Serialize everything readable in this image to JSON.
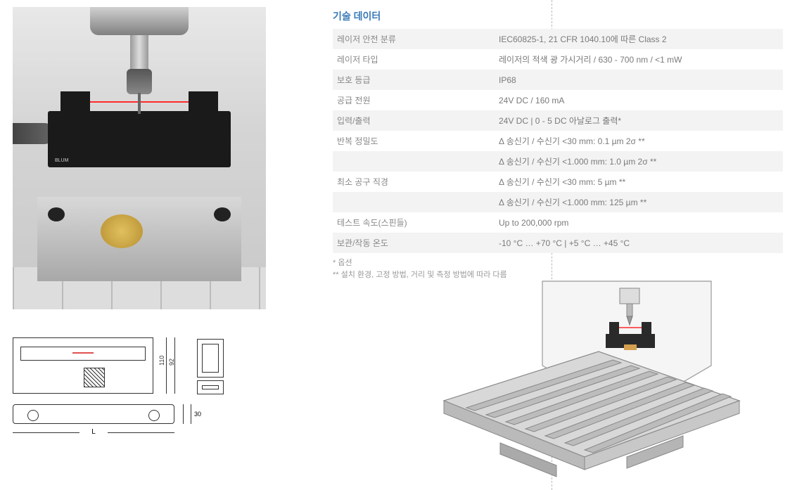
{
  "colors": {
    "accent": "#3a7ab8",
    "row_alt_bg": "#f3f3f3",
    "row_bg": "#ffffff",
    "text_muted": "#7a7a7a",
    "text_light": "#9a9a9a",
    "divider": "#bbbbbb",
    "laser": "#ff2a2a",
    "diagram_stroke": "#333333",
    "gold": "#e0c060"
  },
  "spec": {
    "title": "기술 데이터",
    "rows": [
      {
        "label": "레이저 안전 분류",
        "value": "IEC60825-1, 21 CFR 1040.10에 따른 Class 2"
      },
      {
        "label": "레이저 타입",
        "value": "레이저의 적색 광 가시거리 / 630 - 700 nm / <1 mW"
      },
      {
        "label": "보호 등급",
        "value": "IP68"
      },
      {
        "label": "공급 전원",
        "value": "24V DC / 160 mA"
      },
      {
        "label": "입력/출력",
        "value": "24V DC | 0 - 5  DC 아날로그 출력*"
      },
      {
        "label": "반복 정밀도",
        "value": "Δ 송신기 / 수신기 <30 mm: 0.1 µm 2σ **"
      },
      {
        "label": "",
        "value": "Δ 송신기 / 수신기 <1.000 mm: 1.0 µm 2σ **"
      },
      {
        "label": "최소 공구 직경",
        "value": "Δ 송신기 / 수신기 <30 mm: 5 µm **"
      },
      {
        "label": "",
        "value": "Δ 송신기 / 수신기 <1.000 mm: 125 µm **"
      },
      {
        "label": "테스트 속도(스핀들)",
        "value": "Up to 200,000 rpm"
      },
      {
        "label": "보관/작동 온도",
        "value": "-10 °C … +70 °C | +5 °C … +45 °C"
      }
    ],
    "footnote1": "* 옵션",
    "footnote2": "** 설치 환경, 고정 방법, 거리 및 측정 방법에 따라 다름"
  },
  "diagram": {
    "height_outer": "110",
    "height_inner": "92",
    "depth": "30",
    "length_label": "L"
  },
  "sensor_label": "BLUM"
}
